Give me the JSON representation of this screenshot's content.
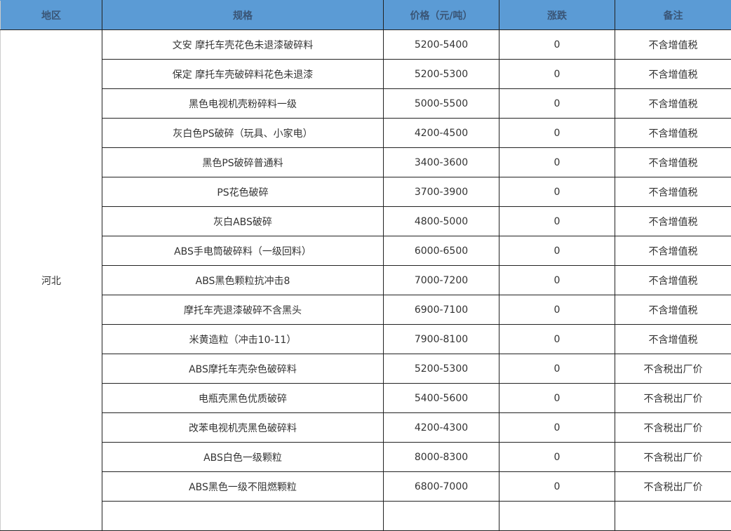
{
  "header": {
    "region": "地区",
    "spec": "规格",
    "price": "价格（元/吨）",
    "change": "涨跌",
    "note": "备注"
  },
  "region": "河北",
  "rows": [
    {
      "spec": "文安 摩托车壳花色未退漆破碎料",
      "price": "5200-5400",
      "change": "0",
      "note": "不含增值税"
    },
    {
      "spec": "保定 摩托车壳破碎料花色未退漆",
      "price": "5200-5300",
      "change": "0",
      "note": "不含增值税"
    },
    {
      "spec": "黑色电视机壳粉碎料一级",
      "price": "5000-5500",
      "change": "0",
      "note": "不含增值税"
    },
    {
      "spec": "灰白色PS破碎（玩具、小家电）",
      "price": "4200-4500",
      "change": "0",
      "note": "不含增值税"
    },
    {
      "spec": "黑色PS破碎普通料",
      "price": "3400-3600",
      "change": "0",
      "note": "不含增值税"
    },
    {
      "spec": "PS花色破碎",
      "price": "3700-3900",
      "change": "0",
      "note": "不含增值税"
    },
    {
      "spec": "灰白ABS破碎",
      "price": "4800-5000",
      "change": "0",
      "note": "不含增值税"
    },
    {
      "spec": "ABS手电筒破碎料（一级回料）",
      "price": "6000-6500",
      "change": "0",
      "note": "不含增值税"
    },
    {
      "spec": "ABS黑色颗粒抗冲击8",
      "price": "7000-7200",
      "change": "0",
      "note": "不含增值税"
    },
    {
      "spec": "摩托车壳退漆破碎不含黑头",
      "price": "6900-7100",
      "change": "0",
      "note": "不含增值税"
    },
    {
      "spec": "米黄造粒（冲击10-11）",
      "price": "7900-8100",
      "change": "0",
      "note": "不含增值税"
    },
    {
      "spec": "ABS摩托车壳杂色破碎料",
      "price": "5200-5300",
      "change": "0",
      "note": "不含税出厂价"
    },
    {
      "spec": "电瓶壳黑色优质破碎",
      "price": "5400-5600",
      "change": "0",
      "note": "不含税出厂价"
    },
    {
      "spec": "改苯电视机壳黑色破碎料",
      "price": "4200-4300",
      "change": "0",
      "note": "不含税出厂价"
    },
    {
      "spec": "ABS白色一级颗粒",
      "price": "8000-8300",
      "change": "0",
      "note": "不含税出厂价"
    },
    {
      "spec": "ABS黑色一级不阻燃颗粒",
      "price": "6800-7000",
      "change": "0",
      "note": "不含税出厂价"
    }
  ]
}
